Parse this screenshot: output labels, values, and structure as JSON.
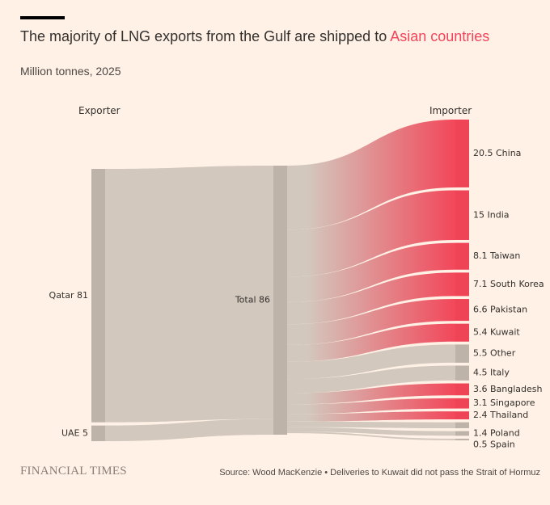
{
  "title": {
    "prefix": "The majority of LNG exports from the Gulf are shipped to ",
    "highlight": "Asian countries"
  },
  "subtitle": "Million tonnes, 2025",
  "footer": {
    "logo": "FINANCIAL TIMES",
    "source": "Source: Wood MacKenzie • Deliveries to Kuwait did not pass the Strait of Hormuz"
  },
  "colors": {
    "node_grey": "#bdb3a9",
    "flow_grey": "#d3c8bd",
    "asian_red": "#f2475a",
    "asian_node": "#ef4456"
  },
  "chart_data": {
    "type": "sankey",
    "title": "The majority of LNG exports from the Gulf are shipped to Asian countries",
    "unit": "Million tonnes, 2025",
    "column_headers": {
      "exporter": "Exporter",
      "importer": "Importer"
    },
    "exporters": [
      {
        "name": "Qatar",
        "value": 81,
        "label": "Qatar 81"
      },
      {
        "name": "UAE",
        "value": 5,
        "label": "UAE 5"
      }
    ],
    "total": {
      "value": 86,
      "label": "Total 86"
    },
    "importers": [
      {
        "name": "China",
        "value": 20.5,
        "label": "20.5 China",
        "asian": true
      },
      {
        "name": "India",
        "value": 15,
        "label": "15 India",
        "asian": true
      },
      {
        "name": "Taiwan",
        "value": 8.1,
        "label": "8.1 Taiwan",
        "asian": true
      },
      {
        "name": "South Korea",
        "value": 7.1,
        "label": "7.1 South Korea",
        "asian": true
      },
      {
        "name": "Pakistan",
        "value": 6.6,
        "label": "6.6 Pakistan",
        "asian": true
      },
      {
        "name": "Kuwait",
        "value": 5.4,
        "label": "5.4 Kuwait",
        "asian": true
      },
      {
        "name": "Other",
        "value": 5.5,
        "label": "5.5 Other",
        "asian": false
      },
      {
        "name": "Italy",
        "value": 4.5,
        "label": "4.5 Italy",
        "asian": false
      },
      {
        "name": "Bangladesh",
        "value": 3.6,
        "label": "3.6 Bangladesh",
        "asian": true
      },
      {
        "name": "Singapore",
        "value": 3.1,
        "label": "3.1 Singapore",
        "asian": true
      },
      {
        "name": "Thailand",
        "value": 2.4,
        "label": "2.4 Thailand",
        "asian": true
      },
      {
        "name": "",
        "value": 1.8,
        "label": "",
        "asian": false
      },
      {
        "name": "Poland",
        "value": 1.4,
        "label": "1.4 Poland",
        "asian": false
      },
      {
        "name": "Spain",
        "value": 0.5,
        "label": "0.5 Spain",
        "asian": false
      }
    ]
  }
}
